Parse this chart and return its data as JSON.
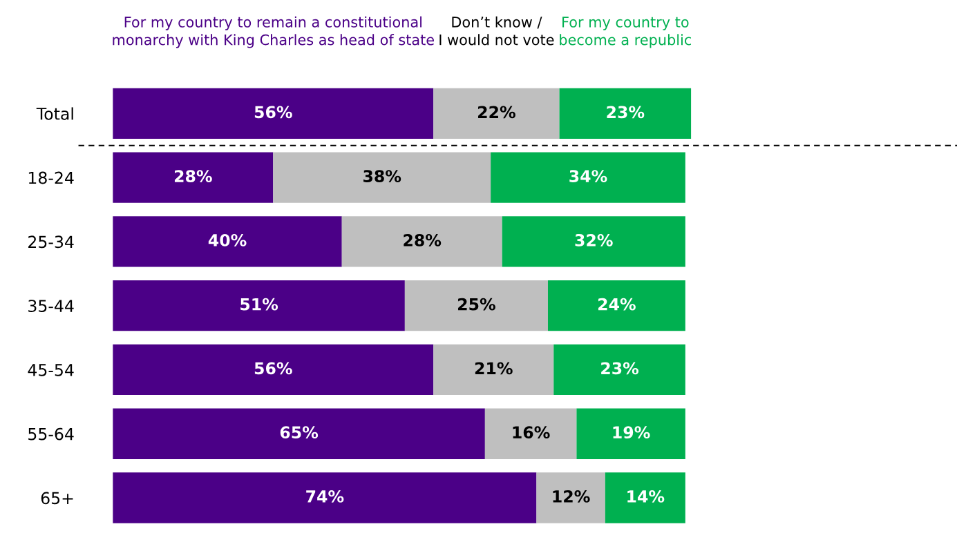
{
  "chart_data": {
    "type": "bar",
    "orientation": "horizontal",
    "stacked": true,
    "tick_labels": "y",
    "legend": "top",
    "grid": false,
    "categories": [
      "Total",
      "18-24",
      "25-34",
      "35-44",
      "45-54",
      "55-64",
      "65+"
    ],
    "series": [
      {
        "name": "For my country to remain a constitutional\nmonarchy with King Charles as head of state",
        "color": "#4b0087",
        "values": [
          56,
          28,
          40,
          51,
          56,
          65,
          74
        ],
        "value_labels": [
          "56%",
          "28%",
          "40%",
          "51%",
          "56%",
          "65%",
          "74%"
        ]
      },
      {
        "name": "Don’t know /\nI would not vote",
        "color": "#bfbfbf",
        "values": [
          22,
          38,
          28,
          25,
          21,
          16,
          12
        ],
        "value_labels": [
          "22%",
          "38%",
          "28%",
          "25%",
          "21%",
          "16%",
          "12%"
        ]
      },
      {
        "name": "For my country to\nbecome a republic",
        "color": "#00b050",
        "values": [
          23,
          34,
          32,
          24,
          23,
          19,
          14
        ],
        "value_labels": [
          "23%",
          "34%",
          "32%",
          "24%",
          "23%",
          "19%",
          "14%"
        ]
      }
    ]
  }
}
